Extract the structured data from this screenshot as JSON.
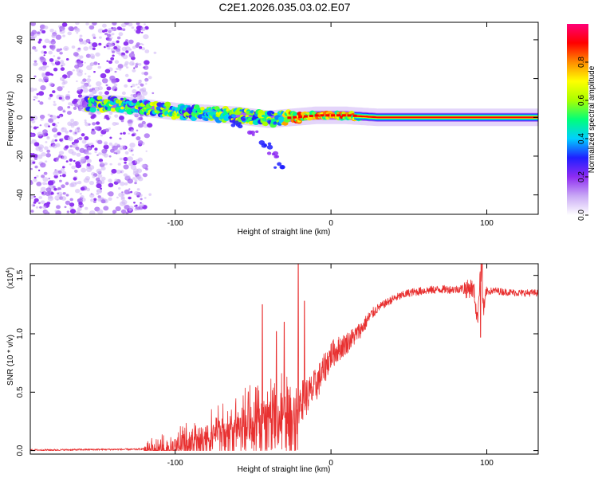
{
  "chart_data": [
    {
      "type": "heatmap",
      "title": "C2E1.2026.035.03.02.E07",
      "xlabel": "Height of straight line (km)",
      "ylabel": "Frequency (Hz)",
      "xlim": [
        -193,
        133
      ],
      "ylim": [
        -50,
        49
      ],
      "xticks": [
        -100,
        0,
        100
      ],
      "yticks": [
        -40,
        -20,
        0,
        20,
        40
      ],
      "colorbar": {
        "label": "Normalized spectral amplitude",
        "range": [
          0.0,
          1.0
        ],
        "ticks": [
          "0.0",
          "0.2",
          "0.4",
          "0.6",
          "0.8"
        ],
        "tick_values": [
          0.0,
          0.2,
          0.4,
          0.6,
          0.8
        ],
        "colors": [
          "#ffffff",
          "#c9a9f5",
          "#8e2cf2",
          "#1f1fff",
          "#00cfff",
          "#00ff7a",
          "#a8ff00",
          "#ffff00",
          "#ff8c00",
          "#ff0000",
          "#ff0078"
        ]
      },
      "features": {
        "noise_region_x": [
          -193,
          -118
        ],
        "main_track": [
          [
            -157,
            7
          ],
          [
            -140,
            7
          ],
          [
            -120,
            5
          ],
          [
            -100,
            3
          ],
          [
            -80,
            2
          ],
          [
            -60,
            1
          ],
          [
            -40,
            -1
          ],
          [
            -25,
            0
          ],
          [
            -10,
            1
          ],
          [
            10,
            1
          ],
          [
            30,
            0
          ],
          [
            60,
            0
          ],
          [
            100,
            0
          ],
          [
            133,
            0
          ]
        ],
        "secondary_track": [
          [
            -60,
            -4
          ],
          [
            -50,
            -8
          ],
          [
            -42,
            -14
          ],
          [
            -37,
            -20
          ],
          [
            -33,
            -25
          ]
        ]
      }
    },
    {
      "type": "line",
      "xlabel": "Height of straight line (km)",
      "ylabel": "SNR (10 * v/v)",
      "multiplier": "(x10",
      "multiplier_exp": "4",
      "xlim": [
        -193,
        133
      ],
      "ylim": [
        -0.03,
        1.6
      ],
      "xticks": [
        -100,
        0,
        100
      ],
      "yticks": [
        0.0,
        0.5,
        1.0,
        1.5
      ],
      "ytick_labels": [
        "0.0",
        "0.5",
        "1.0",
        "1.5"
      ],
      "color": "#e83030",
      "series": [
        {
          "name": "SNR",
          "x": [
            -193,
            -180,
            -160,
            -140,
            -125,
            -115,
            -105,
            -95,
            -85,
            -75,
            -65,
            -55,
            -45,
            -35,
            -28,
            -22,
            -18,
            -14,
            -10,
            -5,
            0,
            5,
            10,
            15,
            20,
            25,
            30,
            40,
            50,
            60,
            70,
            80,
            85,
            88,
            90,
            92,
            94,
            96,
            98,
            100,
            105,
            110,
            120,
            133
          ],
          "values": [
            0.005,
            0.005,
            0.008,
            0.01,
            0.01,
            0.02,
            0.04,
            0.08,
            0.14,
            0.2,
            0.26,
            0.3,
            0.33,
            0.36,
            0.4,
            0.42,
            0.44,
            0.48,
            0.55,
            0.68,
            0.82,
            0.87,
            0.92,
            0.98,
            1.05,
            1.15,
            1.22,
            1.3,
            1.35,
            1.37,
            1.38,
            1.38,
            1.39,
            1.38,
            1.4,
            1.35,
            1.1,
            1.6,
            1.2,
            1.36,
            1.37,
            1.36,
            1.35,
            1.35
          ]
        }
      ],
      "spikes": [
        {
          "x": -44,
          "value": 1.25
        },
        {
          "x": -35,
          "value": 1.02
        },
        {
          "x": -30,
          "value": 1.1
        },
        {
          "x": -21,
          "value": 1.6
        },
        {
          "x": -17,
          "value": 1.28
        },
        {
          "x": 97,
          "value": 1.6
        },
        {
          "x": 96,
          "value": 0.97
        }
      ]
    }
  ]
}
